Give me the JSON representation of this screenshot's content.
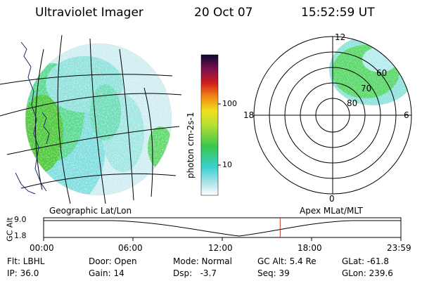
{
  "header": {
    "instrument": "Ultraviolet Imager",
    "date": "20 Oct 07",
    "time": "15:52:59 UT"
  },
  "colorbar": {
    "label": "photon cm-2s-1",
    "ticks": [
      "100",
      "10"
    ]
  },
  "polar_plot": {
    "mlt_labels": [
      "12",
      "18",
      "6",
      "0"
    ],
    "mlat_labels": [
      "60",
      "70",
      "80"
    ]
  },
  "timeline": {
    "left_label": "Geographic Lat/Lon",
    "right_label": "Apex MLat/MLT",
    "axis_title": "GC Alt",
    "y_ticks": [
      "9.0",
      "1.8"
    ],
    "x_ticks": [
      "00:00",
      "06:00",
      "12:00",
      "18:00",
      "23:59"
    ],
    "current_time_marker_hours": 15.88
  },
  "info": {
    "filter": "Flt: LBHL",
    "ip": "IP: 36.0",
    "door": "Door: Open",
    "gain": "Gain: 14",
    "mode": "Mode: Normal",
    "dsp": "Dsp:   -3.7",
    "gc_alt": "GC Alt: 5.4 Re",
    "seq": "Seq: 39",
    "glat": "GLat: -61.8",
    "glon": "GLon: 239.6"
  },
  "colors": {
    "marker": "#c0392b",
    "auroral_green": "#4cc83a",
    "aqua": "#7fe0e0"
  }
}
